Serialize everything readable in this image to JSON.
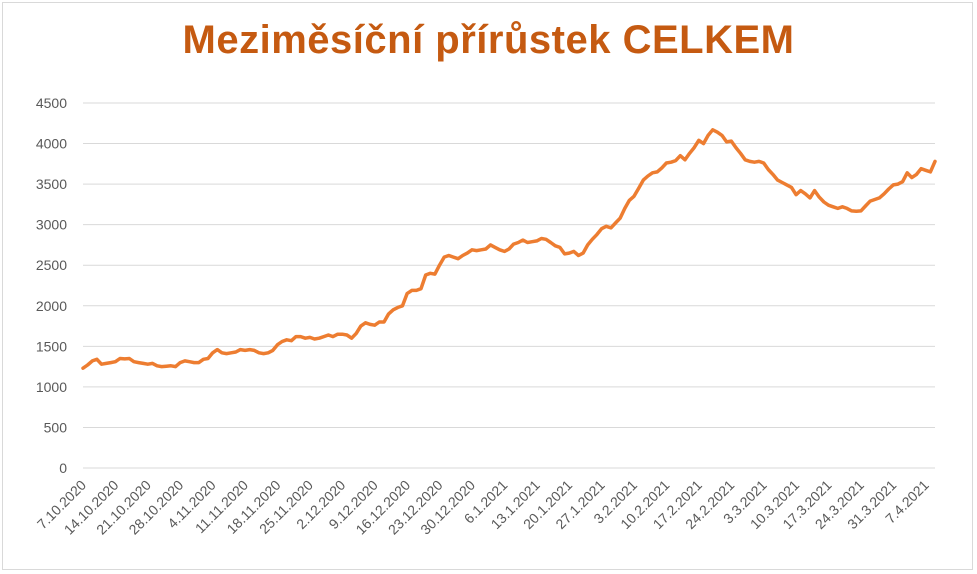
{
  "chart_data": {
    "type": "line",
    "title": "Meziměsíční přírůstek CELKEM",
    "xlabel": "",
    "ylabel": "",
    "ylim": [
      0,
      4500
    ],
    "y_ticks": [
      0,
      500,
      1000,
      1500,
      2000,
      2500,
      3000,
      3500,
      4000,
      4500
    ],
    "grid": true,
    "legend": "none",
    "line_color": "#ed7d31",
    "x_tick_labels": [
      "7.10.2020",
      "14.10.2020",
      "21.10.2020",
      "28.10.2020",
      "4.11.2020",
      "11.11.2020",
      "18.11.2020",
      "25.11.2020",
      "2.12.2020",
      "9.12.2020",
      "16.12.2020",
      "23.12.2020",
      "30.12.2020",
      "6.1.2021",
      "13.1.2021",
      "20.1.2021",
      "27.1.2021",
      "3.2.2021",
      "10.2.2021",
      "17.2.2021",
      "24.2.2021",
      "3.3.2021",
      "10.3.2021",
      "17.3.2021",
      "24.3.2021",
      "31.3.2021",
      "7.4.2021"
    ],
    "series": [
      {
        "values": [
          1230,
          1270,
          1320,
          1340,
          1280,
          1290,
          1300,
          1310,
          1350,
          1345,
          1350,
          1310,
          1300,
          1290,
          1280,
          1290,
          1260,
          1250,
          1255,
          1260,
          1250,
          1300,
          1320,
          1310,
          1300,
          1300,
          1340,
          1350,
          1420,
          1460,
          1420,
          1410,
          1420,
          1430,
          1460,
          1450,
          1460,
          1450,
          1420,
          1410,
          1420,
          1450,
          1520,
          1560,
          1580,
          1570,
          1620,
          1620,
          1600,
          1610,
          1590,
          1600,
          1620,
          1640,
          1620,
          1650,
          1650,
          1640,
          1600,
          1660,
          1750,
          1790,
          1770,
          1760,
          1800,
          1800,
          1900,
          1950,
          1980,
          2000,
          2150,
          2190,
          2190,
          2210,
          2380,
          2400,
          2390,
          2500,
          2600,
          2620,
          2600,
          2580,
          2620,
          2650,
          2690,
          2680,
          2690,
          2700,
          2750,
          2720,
          2690,
          2670,
          2700,
          2760,
          2780,
          2810,
          2780,
          2790,
          2800,
          2830,
          2820,
          2780,
          2740,
          2720,
          2640,
          2650,
          2670,
          2620,
          2650,
          2750,
          2820,
          2880,
          2950,
          2980,
          2960,
          3020,
          3080,
          3200,
          3300,
          3350,
          3450,
          3550,
          3600,
          3640,
          3650,
          3700,
          3760,
          3770,
          3790,
          3850,
          3800,
          3880,
          3950,
          4040,
          4000,
          4100,
          4170,
          4140,
          4100,
          4020,
          4030,
          3950,
          3880,
          3800,
          3780,
          3770,
          3780,
          3760,
          3680,
          3620,
          3550,
          3520,
          3490,
          3460,
          3370,
          3420,
          3380,
          3330,
          3420,
          3340,
          3280,
          3240,
          3220,
          3200,
          3220,
          3200,
          3170,
          3165,
          3170,
          3230,
          3290,
          3310,
          3330,
          3380,
          3440,
          3490,
          3500,
          3530,
          3640,
          3580,
          3620,
          3690,
          3670,
          3650,
          3780
        ]
      }
    ]
  }
}
